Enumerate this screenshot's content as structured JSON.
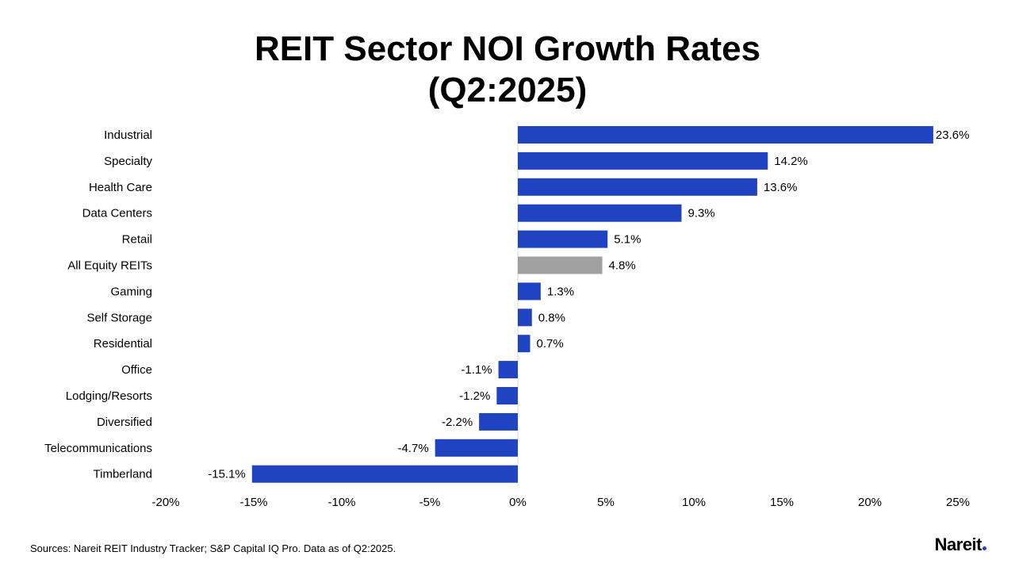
{
  "chart_data": {
    "type": "bar",
    "orientation": "horizontal",
    "title": [
      "REIT Sector NOI Growth Rates",
      "(Q2:2025)"
    ],
    "categories": [
      "Industrial",
      "Specialty",
      "Health Care",
      "Data Centers",
      "Retail",
      "All Equity REITs",
      "Gaming",
      "Self Storage",
      "Residential",
      "Office",
      "Lodging/Resorts",
      "Diversified",
      "Telecommunications",
      "Timberland"
    ],
    "values": [
      23.6,
      14.2,
      13.6,
      9.3,
      5.1,
      4.8,
      1.3,
      0.8,
      0.7,
      -1.1,
      -1.2,
      -2.2,
      -4.7,
      -15.1
    ],
    "value_labels": [
      "23.6%",
      "14.2%",
      "13.6%",
      "9.3%",
      "5.1%",
      "4.8%",
      "1.3%",
      "0.8%",
      "0.7%",
      "-1.1%",
      "-1.2%",
      "-2.2%",
      "-4.7%",
      "-15.1%"
    ],
    "highlight_category": "All Equity REITs",
    "xlim": [
      -20,
      25
    ],
    "xticks": [
      -20,
      -15,
      -10,
      -5,
      0,
      5,
      10,
      15,
      20,
      25
    ],
    "xtick_labels": [
      "-20%",
      "-15%",
      "-10%",
      "-5%",
      "0%",
      "5%",
      "10%",
      "15%",
      "20%",
      "25%"
    ],
    "xlabel": "",
    "ylabel": "",
    "grid": false,
    "legend": "none",
    "colors": {
      "bar": "#1f43c1",
      "highlight": "#a0a0a0",
      "axis": "#d9d9d9"
    }
  },
  "footer": {
    "source": "Sources: Nareit REIT Industry Tracker; S&P Capital IQ Pro. Data as of Q2:2025."
  },
  "logo": {
    "text": "Nareit"
  }
}
